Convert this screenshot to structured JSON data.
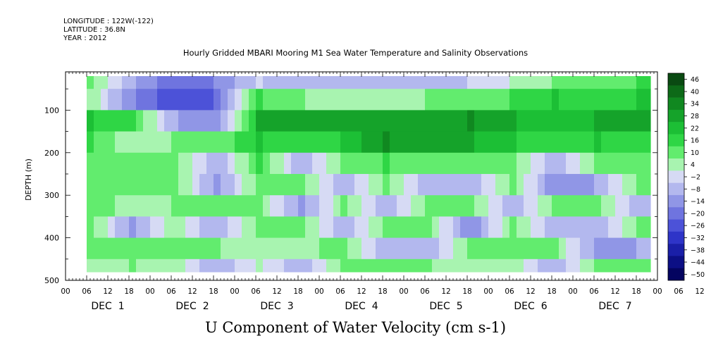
{
  "header": {
    "longitude": "LONGITUDE : 122W(-122)",
    "latitude": "LATITUDE : 36.8N",
    "year": "YEAR : 2012"
  },
  "chart_data": {
    "type": "heatmap",
    "title": "Hourly Gridded MBARI Mooring M1 Sea Water Temperature and Salinity Observations",
    "xlabel": "U Component of Water Velocity (cm s-1)",
    "ylabel": "DEPTH (m)",
    "x_unit": "hour",
    "x_tick_labels": [
      "00",
      "06",
      "12",
      "18",
      "00",
      "06",
      "12",
      "18",
      "00",
      "06",
      "12",
      "18",
      "00",
      "06",
      "12",
      "18",
      "00",
      "06",
      "12",
      "18",
      "00",
      "06",
      "12",
      "18",
      "00",
      "06",
      "12",
      "18",
      "00",
      "06",
      "12",
      "18",
      "00"
    ],
    "day_labels": [
      "DEC  1",
      "DEC  2",
      "DEC  3",
      "DEC  4",
      "DEC  5",
      "DEC  6",
      "DEC  7"
    ],
    "ylim": [
      500,
      10
    ],
    "y_ticks": [
      100,
      200,
      300,
      400,
      500
    ],
    "colorbar": {
      "levels": [
        46,
        40,
        34,
        28,
        22,
        16,
        10,
        4,
        -2,
        -8,
        -14,
        -20,
        -26,
        -32,
        -38,
        -44,
        -50
      ],
      "colors": [
        "#0a4a12",
        "#0d6a18",
        "#108820",
        "#15a32a",
        "#1cbf35",
        "#2fd645",
        "#62ec6e",
        "#a8f4b0",
        "#d6daf4",
        "#b3b8ee",
        "#9096e6",
        "#6f74df",
        "#4c52d8",
        "#2e34c8",
        "#1a1fa8",
        "#0c0f85",
        "#040460"
      ]
    },
    "profiles_cm_s": {
      "depths_m": [
        25,
        75,
        125,
        175,
        225,
        275,
        325,
        375,
        425,
        475
      ],
      "series": [
        {
          "time": "DEC 1 06",
          "values": [
            10,
            8,
            22,
            16,
            10,
            12,
            14,
            12,
            10,
            8
          ]
        },
        {
          "time": "DEC 1 18",
          "values": [
            -8,
            -14,
            16,
            4,
            12,
            10,
            6,
            -10,
            12,
            10
          ]
        },
        {
          "time": "DEC 2 06",
          "values": [
            -20,
            -26,
            -8,
            10,
            10,
            12,
            10,
            8,
            10,
            8
          ]
        },
        {
          "time": "DEC 2 18",
          "values": [
            -14,
            -20,
            -14,
            10,
            -8,
            -10,
            10,
            -8,
            10,
            -8
          ]
        },
        {
          "time": "DEC 3 06",
          "values": [
            -2,
            16,
            28,
            22,
            16,
            12,
            10,
            10,
            8,
            6
          ]
        },
        {
          "time": "DEC 3 18",
          "values": [
            -8,
            10,
            28,
            16,
            -8,
            10,
            -10,
            10,
            8,
            -8
          ]
        },
        {
          "time": "DEC 4 06",
          "values": [
            -8,
            4,
            28,
            22,
            10,
            -8,
            10,
            -8,
            12,
            10
          ]
        },
        {
          "time": "DEC 4 18",
          "values": [
            -8,
            4,
            28,
            34,
            16,
            10,
            -8,
            10,
            -8,
            10
          ]
        },
        {
          "time": "DEC 5 06",
          "values": [
            -8,
            10,
            28,
            28,
            10,
            -8,
            10,
            10,
            -8,
            10
          ]
        },
        {
          "time": "DEC 5 18",
          "values": [
            -2,
            10,
            34,
            28,
            10,
            -8,
            10,
            -14,
            10,
            8
          ]
        },
        {
          "time": "DEC 6 06",
          "values": [
            4,
            16,
            28,
            22,
            10,
            10,
            -8,
            12,
            10,
            8
          ]
        },
        {
          "time": "DEC 6 18",
          "values": [
            10,
            22,
            22,
            16,
            -8,
            -14,
            10,
            -8,
            10,
            -8
          ]
        },
        {
          "time": "DEC 7 06",
          "values": [
            10,
            16,
            28,
            22,
            10,
            -8,
            10,
            -8,
            -10,
            10
          ]
        },
        {
          "time": "DEC 7 18",
          "values": [
            16,
            22,
            28,
            16,
            10,
            12,
            -8,
            10,
            -8,
            10
          ]
        }
      ]
    }
  }
}
